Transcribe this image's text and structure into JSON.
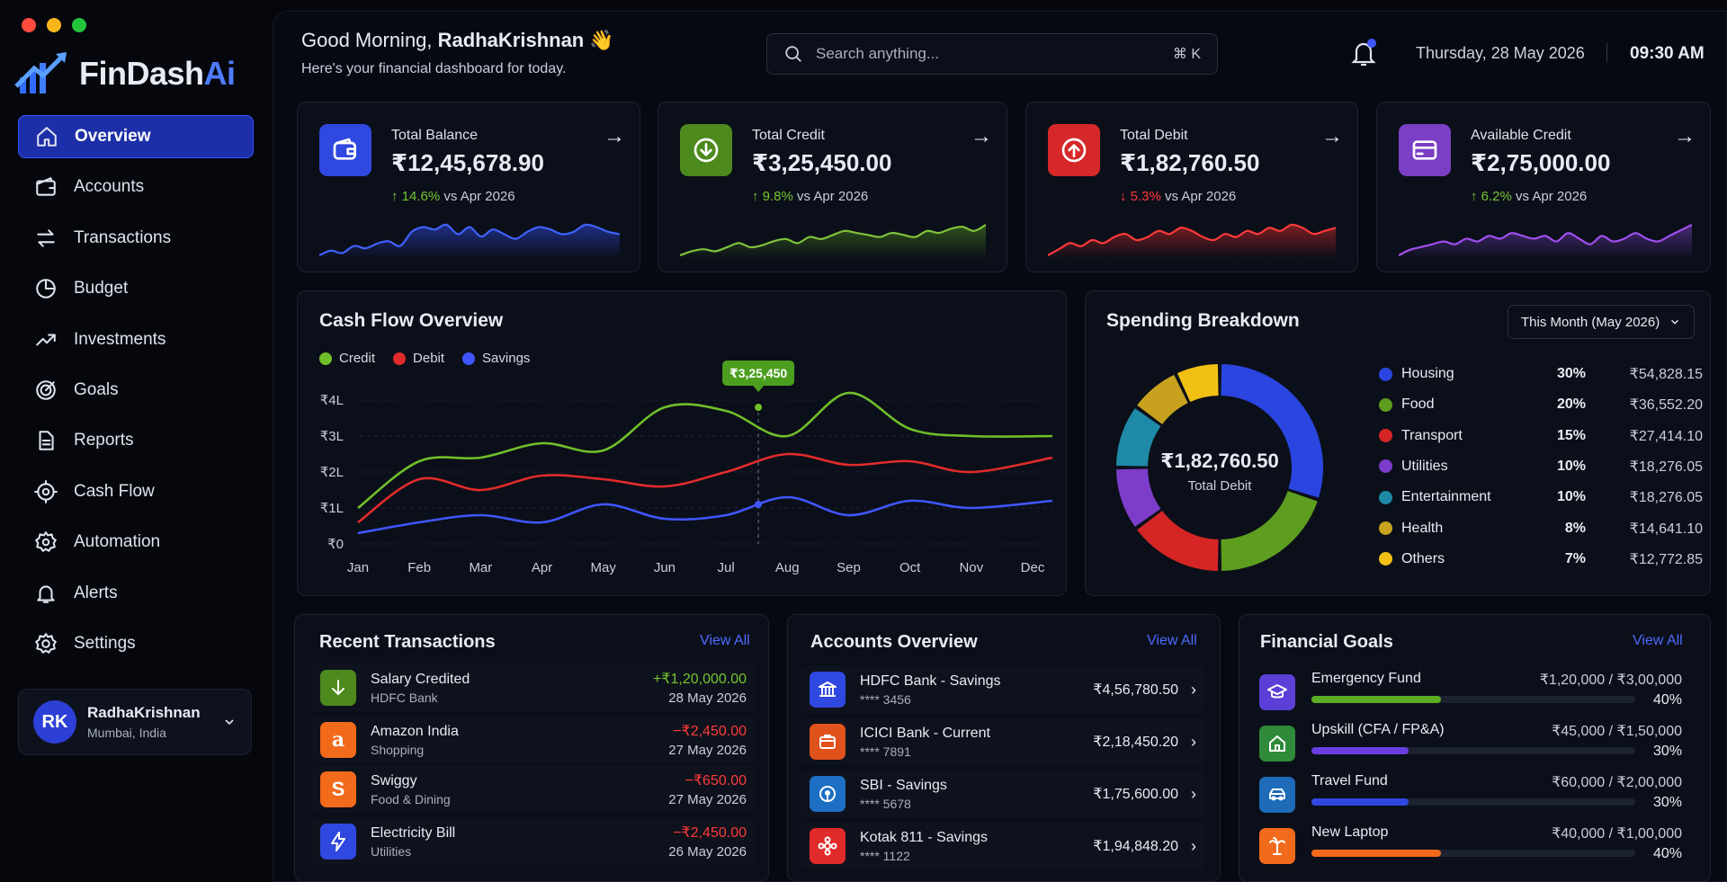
{
  "brand": {
    "name_main": "FinDash",
    "name_ai": "Ai"
  },
  "sidebar": {
    "items": [
      {
        "label": "Overview",
        "icon": "home-icon"
      },
      {
        "label": "Accounts",
        "icon": "wallet-icon"
      },
      {
        "label": "Transactions",
        "icon": "swap-icon"
      },
      {
        "label": "Budget",
        "icon": "pie-icon"
      },
      {
        "label": "Investments",
        "icon": "trend-icon"
      },
      {
        "label": "Goals",
        "icon": "target-icon"
      },
      {
        "label": "Reports",
        "icon": "document-icon"
      },
      {
        "label": "Cash Flow",
        "icon": "cashflow-icon"
      },
      {
        "label": "Automation",
        "icon": "automation-gear-icon"
      },
      {
        "label": "Alerts",
        "icon": "bell-icon"
      },
      {
        "label": "Settings",
        "icon": "gear-icon"
      }
    ]
  },
  "profile": {
    "initials": "RK",
    "name": "RadhaKrishnan",
    "location": "Mumbai, India"
  },
  "header": {
    "greeting": "Good Morning,",
    "user": "RadhaKrishnan",
    "wave": "👋",
    "subtitle": "Here's your financial dashboard for today.",
    "search_placeholder": "Search anything...",
    "search_shortcut": "⌘  K",
    "date": "Thursday, 28 May 2026",
    "time": "09:30 AM"
  },
  "stats": [
    {
      "label": "Total Balance",
      "value": "₹12,45,678.90",
      "change": "14.6%",
      "change_dir": "up",
      "vs": "vs Apr 2026",
      "color": "#2f48e0",
      "icon": "wallet-icon",
      "spark": [
        10,
        12,
        11,
        14,
        13,
        15,
        16,
        14,
        20,
        22,
        21,
        23,
        19,
        22,
        18,
        21,
        19,
        17,
        20,
        22,
        21,
        19,
        20,
        23,
        22,
        20,
        19
      ]
    },
    {
      "label": "Total Credit",
      "value": "₹3,25,450.00",
      "change": "9.8%",
      "change_dir": "up",
      "vs": "vs Apr 2026",
      "color": "#4c8a1d",
      "icon": "download-circle-icon",
      "spark": [
        8,
        10,
        11,
        10,
        12,
        14,
        12,
        13,
        15,
        16,
        14,
        17,
        16,
        18,
        20,
        19,
        18,
        17,
        19,
        18,
        17,
        20,
        19,
        21,
        22,
        20,
        23
      ]
    },
    {
      "label": "Total Debit",
      "value": "₹1,82,760.50",
      "change": "5.3%",
      "change_dir": "down",
      "vs": "vs Apr 2026",
      "color": "#d62828",
      "icon": "upload-circle-icon",
      "spark": [
        9,
        11,
        13,
        12,
        14,
        13,
        15,
        16,
        14,
        15,
        17,
        16,
        18,
        17,
        15,
        14,
        16,
        15,
        17,
        16,
        18,
        17,
        19,
        18,
        16,
        17,
        18
      ]
    },
    {
      "label": "Available Credit",
      "value": "₹2,75,000.00",
      "change": "6.2%",
      "change_dir": "up",
      "vs": "vs Apr 2026",
      "color": "#7a3fc4",
      "icon": "card-icon",
      "spark": [
        9,
        11,
        12,
        13,
        14,
        13,
        15,
        14,
        16,
        15,
        17,
        16,
        15,
        16,
        14,
        17,
        15,
        13,
        16,
        14,
        15,
        17,
        15,
        14,
        16,
        18,
        20
      ]
    }
  ],
  "cashflow": {
    "title": "Cash Flow Overview",
    "tooltip": "₹3,25,450",
    "chart_data": {
      "type": "line",
      "title": "Cash Flow Overview",
      "categories": [
        "Jan",
        "Feb",
        "Mar",
        "Apr",
        "May",
        "Jun",
        "Jul",
        "Aug",
        "Sep",
        "Oct",
        "Nov",
        "Dec"
      ],
      "y_ticks": [
        "₹0",
        "₹1L",
        "₹2L",
        "₹3L",
        "₹4L"
      ],
      "ylim": [
        0,
        4
      ],
      "unit": "lakh ₹",
      "grid": true,
      "legend": "top-left",
      "series": [
        {
          "name": "Credit",
          "color": "#6fbf2a",
          "values": [
            1.0,
            2.3,
            2.4,
            2.8,
            2.6,
            3.8,
            3.7,
            3.0,
            4.2,
            3.2,
            3.0,
            3.0
          ]
        },
        {
          "name": "Debit",
          "color": "#e12b2b",
          "values": [
            0.6,
            1.8,
            1.5,
            1.9,
            1.8,
            1.6,
            2.0,
            2.5,
            2.2,
            2.3,
            2.0,
            2.4
          ]
        },
        {
          "name": "Savings",
          "color": "#3f56ff",
          "values": [
            0.3,
            0.6,
            0.8,
            0.6,
            1.1,
            0.7,
            0.8,
            1.3,
            0.8,
            1.2,
            1.0,
            1.2
          ]
        }
      ]
    }
  },
  "spending": {
    "title": "Spending Breakdown",
    "period": "This Month (May 2026)",
    "center_value": "₹1,82,760.50",
    "center_label": "Total Debit",
    "chart_data": {
      "type": "pie",
      "donut": true,
      "slices": [
        {
          "name": "Housing",
          "percent": "30%",
          "value": 30,
          "amount": "₹54,828.15",
          "color": "#2a45e0"
        },
        {
          "name": "Food",
          "percent": "20%",
          "value": 20,
          "amount": "₹36,552.20",
          "color": "#5e9e1f"
        },
        {
          "name": "Transport",
          "percent": "15%",
          "value": 15,
          "amount": "₹27,414.10",
          "color": "#d62525"
        },
        {
          "name": "Utilities",
          "percent": "10%",
          "value": 10,
          "amount": "₹18,276.05",
          "color": "#7d3cc9"
        },
        {
          "name": "Entertainment",
          "percent": "10%",
          "value": 10,
          "amount": "₹18,276.05",
          "color": "#1e8aa8"
        },
        {
          "name": "Health",
          "percent": "8%",
          "value": 8,
          "amount": "₹14,641.10",
          "color": "#c8a21e"
        },
        {
          "name": "Others",
          "percent": "7%",
          "value": 7,
          "amount": "₹12,772.85",
          "color": "#f2c014"
        }
      ]
    }
  },
  "transactions": {
    "title": "Recent Transactions",
    "view_all": "View All",
    "rows": [
      {
        "title": "Salary Credited",
        "sub": "HDFC Bank",
        "amount": "+₹1,20,000.00",
        "date": "28 May 2026",
        "color": "#4c8a1d",
        "icon": "arrow-down-icon",
        "amount_color": "#74c42f"
      },
      {
        "title": "Amazon India",
        "sub": "Shopping",
        "amount": "−₹2,450.00",
        "date": "27 May 2026",
        "color": "#f26a1b",
        "icon": "amazon-logo-icon",
        "amount_color": "#ff3b3b"
      },
      {
        "title": "Swiggy",
        "sub": "Food & Dining",
        "amount": "−₹650.00",
        "date": "27 May 2026",
        "color": "#f26a1b",
        "icon": "swiggy-logo-icon",
        "amount_color": "#ff3b3b"
      },
      {
        "title": "Electricity Bill",
        "sub": "Utilities",
        "amount": "−₹2,450.00",
        "date": "26 May 2026",
        "color": "#2f48e0",
        "icon": "bolt-icon",
        "amount_color": "#ff3b3b"
      }
    ]
  },
  "accounts": {
    "title": "Accounts Overview",
    "view_all": "View All",
    "rows": [
      {
        "name": "HDFC Bank - Savings",
        "number": "**** 3456",
        "balance": "₹4,56,780.50",
        "color": "#2f48e0",
        "icon": "bank-icon"
      },
      {
        "name": "ICICI Bank - Current",
        "number": "**** 7891",
        "balance": "₹2,18,450.20",
        "color": "#e0521b",
        "icon": "building-icon"
      },
      {
        "name": "SBI - Savings",
        "number": "**** 5678",
        "balance": "₹1,75,600.00",
        "color": "#1d6fc4",
        "icon": "sbi-logo-icon"
      },
      {
        "name": "Kotak 811 - Savings",
        "number": "**** 1122",
        "balance": "₹1,94,848.20",
        "color": "#e12b2b",
        "icon": "kotak-logo-icon"
      }
    ]
  },
  "goals": {
    "title": "Financial Goals",
    "view_all": "View All",
    "rows": [
      {
        "name": "Emergency Fund",
        "amount": "₹1,20,000 / ₹3,00,000",
        "percent": "40%",
        "progress": 0.4,
        "color": "#5b3fd6",
        "bar": "#5aad23",
        "icon": "graduation-cap-icon"
      },
      {
        "name": "Upskill (CFA / FP&A)",
        "amount": "₹45,000 / ₹1,50,000",
        "percent": "30%",
        "progress": 0.3,
        "color": "#2f8a3a",
        "bar": "#6a3fe0",
        "icon": "house-icon"
      },
      {
        "name": "Travel Fund",
        "amount": "₹60,000 / ₹2,00,000",
        "percent": "30%",
        "progress": 0.3,
        "color": "#1e6bb8",
        "bar": "#2f48e0",
        "icon": "car-icon"
      },
      {
        "name": "New Laptop",
        "amount": "₹40,000 / ₹1,00,000",
        "percent": "40%",
        "progress": 0.4,
        "color": "#f26a1b",
        "bar": "#f26a1b",
        "icon": "palm-tree-icon"
      }
    ]
  }
}
